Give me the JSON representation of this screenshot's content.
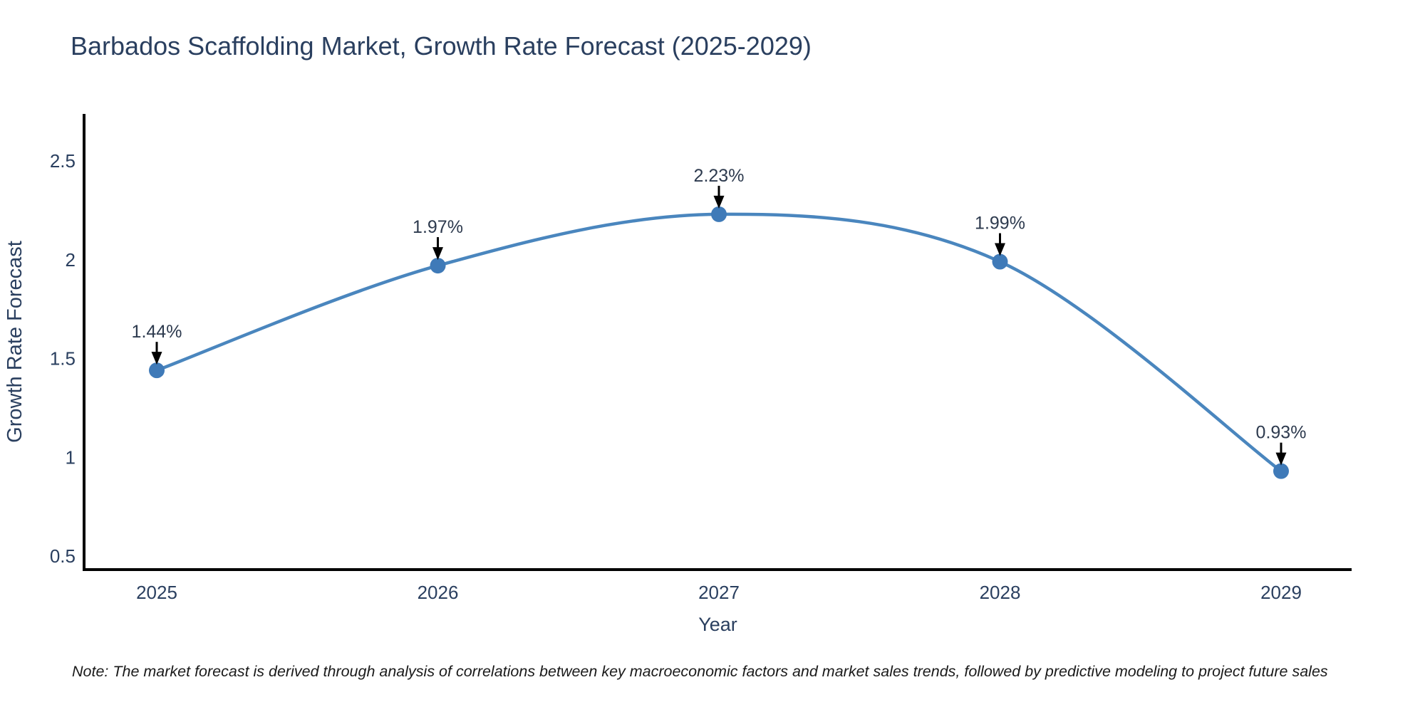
{
  "chart_data": {
    "type": "line",
    "title": "Barbados Scaffolding Market, Growth Rate Forecast (2025-2029)",
    "xlabel": "Year",
    "ylabel": "Growth Rate Forecast",
    "categories": [
      "2025",
      "2026",
      "2027",
      "2028",
      "2029"
    ],
    "series": [
      {
        "name": "Growth Rate Forecast",
        "values": [
          1.44,
          1.97,
          2.23,
          1.99,
          0.93
        ]
      }
    ],
    "point_labels": [
      "1.44%",
      "1.97%",
      "2.23%",
      "1.99%",
      "0.93%"
    ],
    "yticks": [
      0.5,
      1,
      1.5,
      2,
      2.5
    ],
    "ylim": [
      0.43,
      2.74
    ],
    "line_shape": "spline",
    "grid": false,
    "legend": "none",
    "annotation_arrows": true,
    "colors": {
      "line": "#4a86be",
      "marker": "#3f7ab8",
      "arrow": "#000000",
      "axis": "#000000",
      "text": "#2a3f5f"
    }
  },
  "note": "Note: The market forecast is derived through analysis of correlations between key macroeconomic factors and market sales trends, followed by predictive modeling to project future sales"
}
